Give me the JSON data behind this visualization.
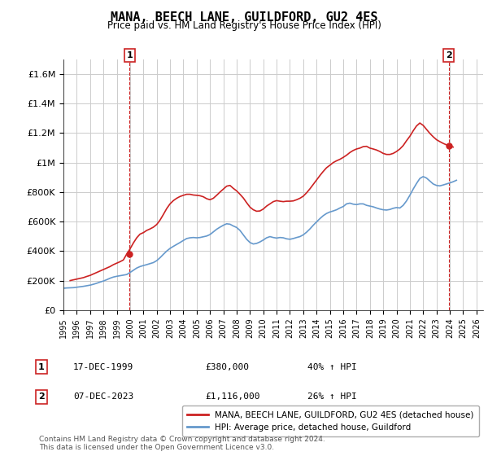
{
  "title": "MANA, BEECH LANE, GUILDFORD, GU2 4ES",
  "subtitle": "Price paid vs. HM Land Registry's House Price Index (HPI)",
  "ylim": [
    0,
    1700000
  ],
  "yticks": [
    0,
    200000,
    400000,
    600000,
    800000,
    1000000,
    1200000,
    1400000,
    1600000
  ],
  "ytick_labels": [
    "£0",
    "£200K",
    "£400K",
    "£600K",
    "£800K",
    "£1M",
    "£1.2M",
    "£1.4M",
    "£1.6M"
  ],
  "xlim_start": 1995.0,
  "xlim_end": 2026.5,
  "xticks": [
    1995,
    1996,
    1997,
    1998,
    1999,
    2000,
    2001,
    2002,
    2003,
    2004,
    2005,
    2006,
    2007,
    2008,
    2009,
    2010,
    2011,
    2012,
    2013,
    2014,
    2015,
    2016,
    2017,
    2018,
    2019,
    2020,
    2021,
    2022,
    2023,
    2024,
    2025,
    2026
  ],
  "transaction1_x": 1999.96,
  "transaction1_y": 380000,
  "transaction1_label": "1",
  "transaction1_date": "17-DEC-1999",
  "transaction1_price": "£380,000",
  "transaction1_hpi": "40% ↑ HPI",
  "transaction2_x": 2023.92,
  "transaction2_y": 1116000,
  "transaction2_label": "2",
  "transaction2_date": "07-DEC-2023",
  "transaction2_price": "£1,116,000",
  "transaction2_hpi": "26% ↑ HPI",
  "vline1_x": 1999.96,
  "vline2_x": 2023.92,
  "hpi_line_color": "#6699cc",
  "price_line_color": "#cc2222",
  "vline_color": "#cc2222",
  "grid_color": "#cccccc",
  "background_color": "#ffffff",
  "legend_label_price": "MANA, BEECH LANE, GUILDFORD, GU2 4ES (detached house)",
  "legend_label_hpi": "HPI: Average price, detached house, Guildford",
  "footer": "Contains HM Land Registry data © Crown copyright and database right 2024.\nThis data is licensed under the Open Government Licence v3.0.",
  "hpi_data_x": [
    1995.0,
    1995.25,
    1995.5,
    1995.75,
    1996.0,
    1996.25,
    1996.5,
    1996.75,
    1997.0,
    1997.25,
    1997.5,
    1997.75,
    1998.0,
    1998.25,
    1998.5,
    1998.75,
    1999.0,
    1999.25,
    1999.5,
    1999.75,
    2000.0,
    2000.25,
    2000.5,
    2000.75,
    2001.0,
    2001.25,
    2001.5,
    2001.75,
    2002.0,
    2002.25,
    2002.5,
    2002.75,
    2003.0,
    2003.25,
    2003.5,
    2003.75,
    2004.0,
    2004.25,
    2004.5,
    2004.75,
    2005.0,
    2005.25,
    2005.5,
    2005.75,
    2006.0,
    2006.25,
    2006.5,
    2006.75,
    2007.0,
    2007.25,
    2007.5,
    2007.75,
    2008.0,
    2008.25,
    2008.5,
    2008.75,
    2009.0,
    2009.25,
    2009.5,
    2009.75,
    2010.0,
    2010.25,
    2010.5,
    2010.75,
    2011.0,
    2011.25,
    2011.5,
    2011.75,
    2012.0,
    2012.25,
    2012.5,
    2012.75,
    2013.0,
    2013.25,
    2013.5,
    2013.75,
    2014.0,
    2014.25,
    2014.5,
    2014.75,
    2015.0,
    2015.25,
    2015.5,
    2015.75,
    2016.0,
    2016.25,
    2016.5,
    2016.75,
    2017.0,
    2017.25,
    2017.5,
    2017.75,
    2018.0,
    2018.25,
    2018.5,
    2018.75,
    2019.0,
    2019.25,
    2019.5,
    2019.75,
    2020.0,
    2020.25,
    2020.5,
    2020.75,
    2021.0,
    2021.25,
    2021.5,
    2021.75,
    2022.0,
    2022.25,
    2022.5,
    2022.75,
    2023.0,
    2023.25,
    2023.5,
    2023.75,
    2024.0,
    2024.25,
    2024.5
  ],
  "hpi_data_y": [
    148000,
    150000,
    151000,
    152000,
    155000,
    158000,
    161000,
    165000,
    169000,
    175000,
    182000,
    190000,
    197000,
    206000,
    216000,
    224000,
    229000,
    233000,
    237000,
    241000,
    255000,
    270000,
    285000,
    295000,
    302000,
    308000,
    315000,
    322000,
    335000,
    355000,
    378000,
    400000,
    418000,
    432000,
    445000,
    458000,
    472000,
    485000,
    490000,
    492000,
    490000,
    492000,
    497000,
    502000,
    512000,
    530000,
    548000,
    562000,
    575000,
    585000,
    582000,
    570000,
    560000,
    540000,
    510000,
    480000,
    458000,
    448000,
    452000,
    462000,
    475000,
    490000,
    498000,
    492000,
    488000,
    492000,
    490000,
    483000,
    480000,
    485000,
    492000,
    498000,
    510000,
    528000,
    550000,
    575000,
    598000,
    620000,
    640000,
    655000,
    665000,
    672000,
    680000,
    692000,
    702000,
    720000,
    725000,
    718000,
    715000,
    720000,
    720000,
    710000,
    705000,
    700000,
    692000,
    685000,
    680000,
    678000,
    682000,
    690000,
    695000,
    692000,
    710000,
    740000,
    778000,
    820000,
    858000,
    892000,
    905000,
    895000,
    875000,
    855000,
    845000,
    842000,
    848000,
    855000,
    862000,
    870000,
    880000
  ],
  "price_data_x": [
    1995.5,
    1995.75,
    1996.0,
    1996.25,
    1996.5,
    1996.75,
    1997.0,
    1997.25,
    1997.5,
    1997.75,
    1998.0,
    1998.25,
    1998.5,
    1998.75,
    1999.0,
    1999.25,
    1999.5,
    1999.75,
    2000.0,
    2000.25,
    2000.5,
    2000.75,
    2001.0,
    2001.25,
    2001.5,
    2001.75,
    2002.0,
    2002.25,
    2002.5,
    2002.75,
    2003.0,
    2003.25,
    2003.5,
    2003.75,
    2004.0,
    2004.25,
    2004.5,
    2004.75,
    2005.0,
    2005.25,
    2005.5,
    2005.75,
    2006.0,
    2006.25,
    2006.5,
    2006.75,
    2007.0,
    2007.25,
    2007.5,
    2007.75,
    2008.0,
    2008.25,
    2008.5,
    2008.75,
    2009.0,
    2009.25,
    2009.5,
    2009.75,
    2010.0,
    2010.25,
    2010.5,
    2010.75,
    2011.0,
    2011.25,
    2011.5,
    2011.75,
    2012.0,
    2012.25,
    2012.5,
    2012.75,
    2013.0,
    2013.25,
    2013.5,
    2013.75,
    2014.0,
    2014.25,
    2014.5,
    2014.75,
    2015.0,
    2015.25,
    2015.5,
    2015.75,
    2016.0,
    2016.25,
    2016.5,
    2016.75,
    2017.0,
    2017.25,
    2017.5,
    2017.75,
    2018.0,
    2018.25,
    2018.5,
    2018.75,
    2019.0,
    2019.25,
    2019.5,
    2019.75,
    2020.0,
    2020.25,
    2020.5,
    2020.75,
    2021.0,
    2021.25,
    2021.5,
    2021.75,
    2022.0,
    2022.25,
    2022.5,
    2022.75,
    2023.0,
    2023.25,
    2023.5,
    2023.75,
    2024.0,
    2024.25
  ],
  "price_data_y": [
    200000,
    205000,
    210000,
    215000,
    220000,
    228000,
    235000,
    245000,
    255000,
    265000,
    275000,
    285000,
    295000,
    308000,
    318000,
    328000,
    340000,
    380000,
    415000,
    455000,
    490000,
    515000,
    525000,
    540000,
    550000,
    562000,
    580000,
    610000,
    648000,
    688000,
    720000,
    742000,
    758000,
    770000,
    778000,
    785000,
    785000,
    780000,
    778000,
    775000,
    768000,
    755000,
    748000,
    758000,
    778000,
    800000,
    820000,
    840000,
    845000,
    825000,
    808000,
    785000,
    760000,
    728000,
    698000,
    680000,
    670000,
    672000,
    685000,
    705000,
    720000,
    735000,
    742000,
    738000,
    735000,
    738000,
    738000,
    740000,
    748000,
    758000,
    772000,
    795000,
    822000,
    852000,
    882000,
    912000,
    940000,
    965000,
    982000,
    1000000,
    1012000,
    1022000,
    1035000,
    1050000,
    1068000,
    1082000,
    1092000,
    1098000,
    1108000,
    1110000,
    1098000,
    1092000,
    1085000,
    1075000,
    1062000,
    1055000,
    1055000,
    1062000,
    1075000,
    1092000,
    1115000,
    1148000,
    1178000,
    1215000,
    1248000,
    1268000,
    1252000,
    1225000,
    1198000,
    1175000,
    1155000,
    1142000,
    1130000,
    1120000,
    1110000,
    1105000
  ]
}
